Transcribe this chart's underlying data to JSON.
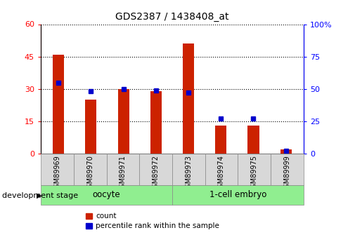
{
  "title": "GDS2387 / 1438408_at",
  "samples": [
    "GSM89969",
    "GSM89970",
    "GSM89971",
    "GSM89972",
    "GSM89973",
    "GSM89974",
    "GSM89975",
    "GSM89999"
  ],
  "counts": [
    46,
    25,
    30,
    29,
    51,
    13,
    13,
    2
  ],
  "percentile_ranks": [
    55,
    48,
    50,
    49,
    47,
    27,
    27,
    2
  ],
  "left_yticks": [
    0,
    15,
    30,
    45,
    60
  ],
  "left_ylim": [
    0,
    60
  ],
  "right_yticks": [
    0,
    25,
    50,
    75,
    100
  ],
  "right_ylim": [
    0,
    100
  ],
  "bar_color": "#CC2200",
  "percentile_color": "#0000CC",
  "bg_color": "#FFFFFF",
  "legend_count_label": "count",
  "legend_percentile_label": "percentile rank within the sample",
  "bar_width": 0.35,
  "oocyte_label": "oocyte",
  "embryo_label": "1-cell embryo",
  "group_label": "development stage",
  "title_fontsize": 10,
  "tick_fontsize": 8,
  "label_fontsize": 8,
  "group_fontsize": 8.5,
  "legend_fontsize": 7.5
}
